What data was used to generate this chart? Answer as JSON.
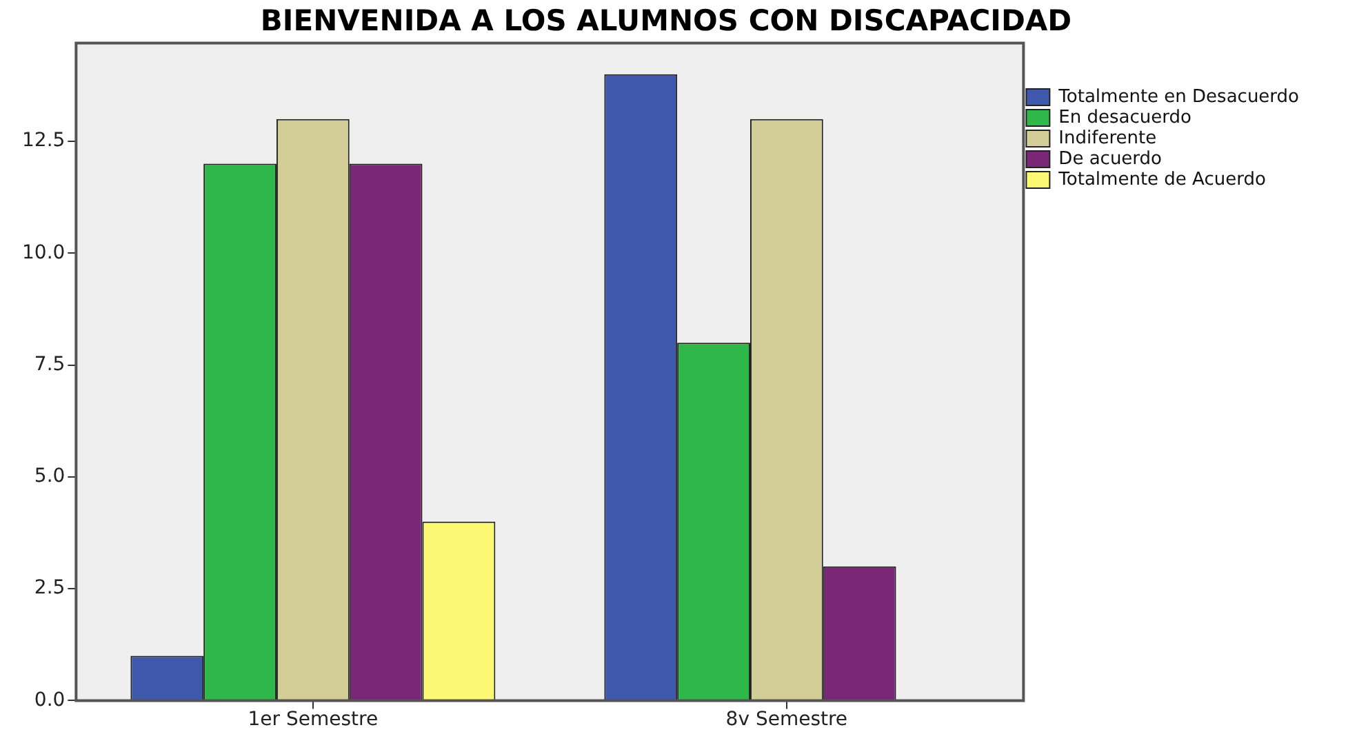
{
  "chart_data": {
    "type": "bar",
    "title": "BIENVENIDA A LOS ALUMNOS CON DISCAPACIDAD",
    "categories": [
      "1er Semestre",
      "8v Semestre"
    ],
    "series": [
      {
        "name": "Totalmente en Desacuerdo",
        "color": "#3e58ac",
        "values": [
          1,
          14
        ]
      },
      {
        "name": "En desacuerdo",
        "color": "#2fb84a",
        "values": [
          12,
          8
        ]
      },
      {
        "name": "Indiferente",
        "color": "#d3ce97",
        "values": [
          13,
          13
        ]
      },
      {
        "name": "De acuerdo",
        "color": "#7b2778",
        "values": [
          12,
          3
        ]
      },
      {
        "name": "Totalmente de Acuerdo",
        "color": "#fbf873",
        "values": [
          4,
          null
        ]
      }
    ],
    "ylim": [
      0,
      14.7
    ],
    "yticks": [
      {
        "value": 0,
        "label": "0.0"
      },
      2.5,
      {
        "value": 5,
        "label": "5.0"
      },
      7.5,
      {
        "value": 10,
        "label": "10.0"
      },
      12.5
    ],
    "grid": false,
    "legend": "top right"
  }
}
